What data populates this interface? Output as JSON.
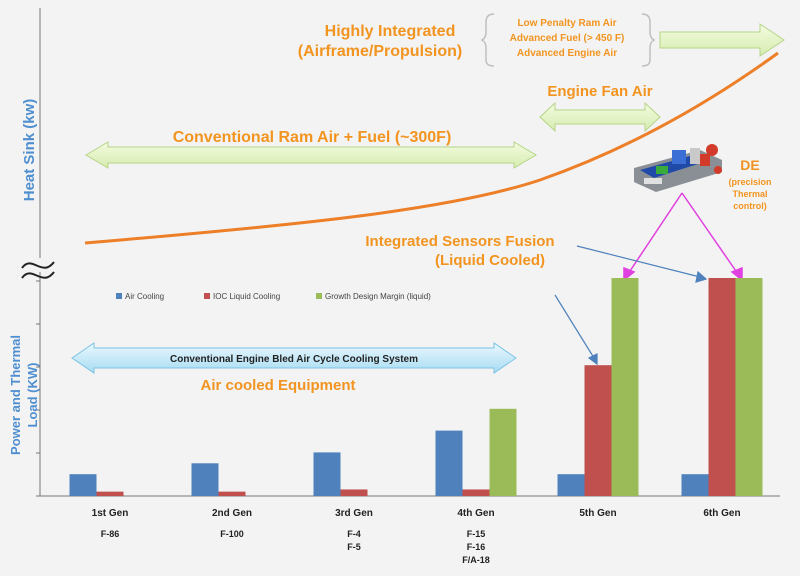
{
  "upper": {
    "ylabel": "Heat Sink (kw)",
    "highly_integrated": [
      "Highly Integrated",
      "(Airframe/Propulsion)"
    ],
    "advanced_box": [
      "Low Penalty Ram Air",
      "Advanced Fuel (> 450 F)",
      "Advanced Engine Air"
    ],
    "engine_fan_air": "Engine Fan Air",
    "conventional_ram_air": "Conventional Ram Air + Fuel (~300F)",
    "de_label": [
      "DE",
      "(precision",
      "Thermal",
      "control)"
    ],
    "sensors_label": [
      "Integrated Sensors Fusion",
      "(Liquid Cooled)"
    ]
  },
  "lower": {
    "ylabel": [
      "Power and Thermal",
      "Load (KW)"
    ],
    "bled_air": "Conventional Engine Bled Air Cycle Cooling System",
    "air_cooled": "Air cooled Equipment"
  },
  "colors": {
    "air": "#4f81bd",
    "ioc": "#c0504d",
    "growth": "#9bbb59",
    "curve": "#ec7f28",
    "orange_text": "#f2941f",
    "blue_text": "#4f8fd0"
  },
  "chart_data": {
    "type": "bar",
    "categories": [
      "1st Gen",
      "2nd Gen",
      "3rd Gen",
      "4th Gen",
      "5th Gen",
      "6th Gen"
    ],
    "category_aircraft": [
      [
        "F-86"
      ],
      [
        "F-100"
      ],
      [
        "F-4",
        "F-5"
      ],
      [
        "F-15",
        "F-16",
        "F/A-18"
      ],
      [],
      []
    ],
    "series": [
      {
        "name": "Air Cooling",
        "values": [
          1.0,
          1.5,
          2.0,
          3.0,
          1.0,
          1.0
        ]
      },
      {
        "name": "IOC Liquid Cooling",
        "values": [
          0.2,
          0.2,
          0.3,
          0.3,
          6.0,
          10.0
        ]
      },
      {
        "name": "Growth Design Margin (liquid)",
        "values": [
          0,
          0,
          0,
          4.0,
          10.0,
          10.0
        ]
      }
    ],
    "ylim": [
      0,
      10.5
    ],
    "legend": "top-left",
    "grid": false
  }
}
